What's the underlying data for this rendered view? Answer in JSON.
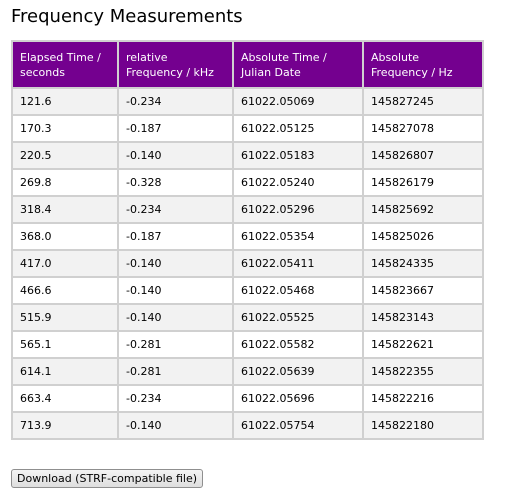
{
  "page": {
    "title": "Frequency Measurements"
  },
  "table": {
    "headers": [
      "Elapsed Time / seconds",
      "relative Frequency / kHz",
      "Absolute Time / Julian Date",
      "Absolute Frequency / Hz"
    ],
    "rows": [
      [
        "121.6",
        "-0.234",
        "61022.05069",
        "145827245"
      ],
      [
        "170.3",
        "-0.187",
        "61022.05125",
        "145827078"
      ],
      [
        "220.5",
        "-0.140",
        "61022.05183",
        "145826807"
      ],
      [
        "269.8",
        "-0.328",
        "61022.05240",
        "145826179"
      ],
      [
        "318.4",
        "-0.234",
        "61022.05296",
        "145825692"
      ],
      [
        "368.0",
        "-0.187",
        "61022.05354",
        "145825026"
      ],
      [
        "417.0",
        "-0.140",
        "61022.05411",
        "145824335"
      ],
      [
        "466.6",
        "-0.140",
        "61022.05468",
        "145823667"
      ],
      [
        "515.9",
        "-0.140",
        "61022.05525",
        "145823143"
      ],
      [
        "565.1",
        "-0.281",
        "61022.05582",
        "145822621"
      ],
      [
        "614.1",
        "-0.281",
        "61022.05639",
        "145822355"
      ],
      [
        "663.4",
        "-0.234",
        "61022.05696",
        "145822216"
      ],
      [
        "713.9",
        "-0.140",
        "61022.05754",
        "145822180"
      ]
    ]
  },
  "actions": {
    "download_label": "Download (STRF-compatible file)"
  },
  "colors": {
    "header_bg": "#74008f",
    "header_text": "#ffffff",
    "row_alt_bg": "#f2f2f2"
  }
}
